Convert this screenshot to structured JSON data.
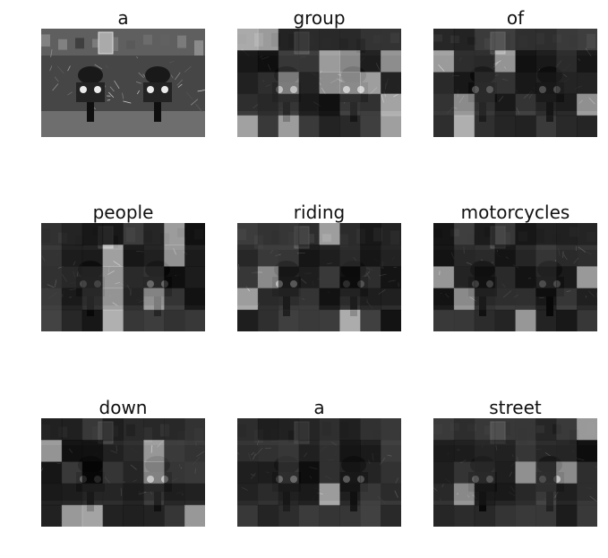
{
  "figure": {
    "panels": [
      {
        "caption_word": "a",
        "style": "photo",
        "seed": 3
      },
      {
        "caption_word": "group",
        "style": "attention",
        "seed": 11
      },
      {
        "caption_word": "of",
        "style": "attention",
        "seed": 19
      },
      {
        "caption_word": "people",
        "style": "attention",
        "seed": 27
      },
      {
        "caption_word": "riding",
        "style": "attention",
        "seed": 35
      },
      {
        "caption_word": "motorcycles",
        "style": "attention",
        "seed": 43
      },
      {
        "caption_word": "down",
        "style": "attention",
        "seed": 51
      },
      {
        "caption_word": "a",
        "style": "attention",
        "seed": 59
      },
      {
        "caption_word": "street",
        "style": "attention",
        "seed": 67
      }
    ],
    "colors": {
      "background": "#ffffff",
      "title_text": "#111111",
      "attention_dark": "#0d0d0d",
      "attention_bright": "#f0f0f0"
    }
  }
}
